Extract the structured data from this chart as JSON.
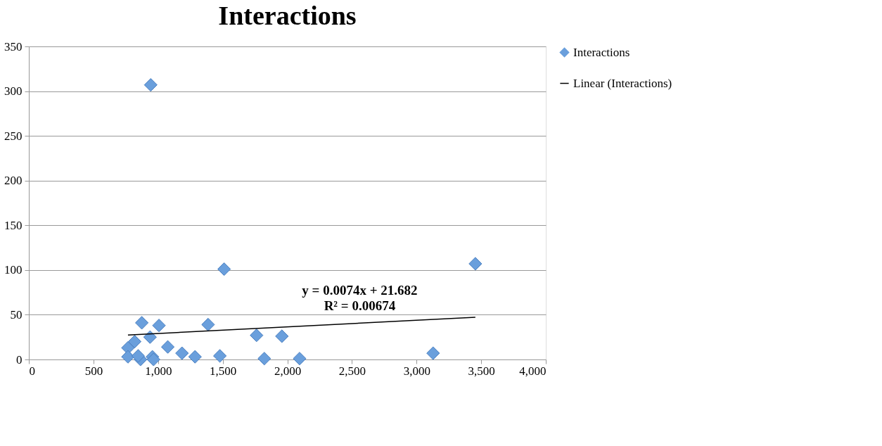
{
  "chart_data": {
    "type": "scatter",
    "title": "Interactions",
    "x": [
      943,
      1511,
      3455,
      874,
      1007,
      938,
      1387,
      767,
      819,
      1075,
      1185,
      1286,
      1478,
      1762,
      1958,
      1822,
      2095,
      767,
      864,
      846,
      956,
      965,
      3128
    ],
    "series": [
      {
        "name": "Interactions",
        "color": "#6a9fdc",
        "marker": "diamond",
        "values": [
          307,
          101,
          107,
          41,
          38,
          25,
          39,
          13,
          20,
          14,
          7,
          3,
          4,
          27,
          26,
          1,
          1,
          3,
          0,
          4,
          3,
          0,
          7
        ]
      },
      {
        "name": "Linear (Interactions)",
        "type": "line",
        "color": "#000000",
        "x": [
          767,
          3455
        ],
        "values": [
          27.4,
          47.2
        ]
      }
    ],
    "xlim": [
      0,
      4000
    ],
    "xticks": [
      0,
      {
        "value": 500,
        "label": "500"
      },
      {
        "value": 1000,
        "label": "1,000"
      },
      {
        "value": 1500,
        "label": "1,500"
      },
      {
        "value": 2000,
        "label": "2,000"
      },
      {
        "value": 2500,
        "label": "2,500"
      },
      {
        "value": 3000,
        "label": "3,000"
      },
      {
        "value": 3500,
        "label": "3,500"
      },
      {
        "value": 4000,
        "label": "4,000"
      }
    ],
    "ylim": [
      0,
      350
    ],
    "yticks": [
      0,
      50,
      100,
      150,
      200,
      250,
      300,
      350
    ],
    "grid": "y",
    "legend": "right",
    "annotations": [
      "y = 0.0074x + 21.682",
      "R² = 0.00674"
    ]
  }
}
